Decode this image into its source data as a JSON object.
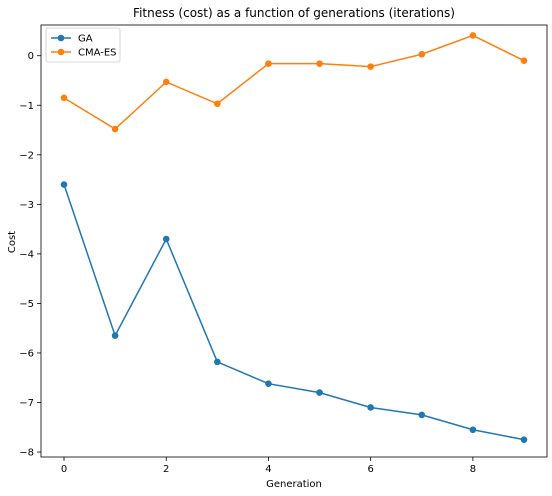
{
  "chart_data": {
    "type": "line",
    "title": "Fitness (cost) as a function of generations (iterations)",
    "xlabel": "Generation",
    "ylabel": "Cost",
    "xlim": [
      -0.45,
      9.45
    ],
    "ylim": [
      -8.1,
      0.62
    ],
    "x_ticks": [
      0,
      2,
      4,
      6,
      8
    ],
    "y_ticks": [
      -8,
      -7,
      -6,
      -5,
      -4,
      -3,
      -2,
      -1,
      0
    ],
    "grid": false,
    "legend_position": "top-left",
    "x": [
      0,
      1,
      2,
      3,
      4,
      5,
      6,
      7,
      8,
      9
    ],
    "series": [
      {
        "name": "GA",
        "color": "#1f77b4",
        "marker": "circle",
        "values": [
          -2.6,
          -5.65,
          -3.7,
          -6.18,
          -6.62,
          -6.8,
          -7.1,
          -7.25,
          -7.55,
          -7.75
        ]
      },
      {
        "name": "CMA-ES",
        "color": "#ff7f0e",
        "marker": "circle",
        "values": [
          -0.85,
          -1.48,
          -0.53,
          -0.97,
          -0.16,
          -0.16,
          -0.22,
          0.03,
          0.41,
          -0.1
        ]
      }
    ]
  }
}
